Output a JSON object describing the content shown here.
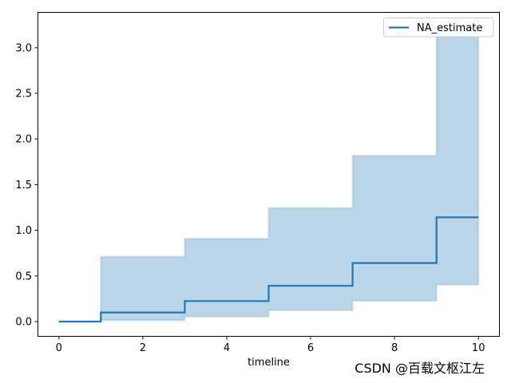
{
  "watermark": {
    "text": "CSDN @百载文枢江左",
    "color": "#b3b3b3"
  },
  "chart_data": {
    "type": "line",
    "subtype": "step-post",
    "title": "",
    "xlabel": "timeline",
    "ylabel": "",
    "grid": false,
    "background": "#ffffff",
    "axes_color": "#000000",
    "xlim": [
      -0.5,
      10.5
    ],
    "ylim": [
      -0.1613,
      3.3869
    ],
    "xticks": {
      "values": [
        0,
        2,
        4,
        6,
        8,
        10
      ],
      "labels": [
        "0",
        "2",
        "4",
        "6",
        "8",
        "10"
      ]
    },
    "yticks": {
      "values": [
        0,
        0.5,
        1.0,
        1.5,
        2.0,
        2.5,
        3.0
      ],
      "labels": [
        "0.0",
        "0.5",
        "1.0",
        "1.5",
        "2.0",
        "2.5",
        "3.0"
      ]
    },
    "legend": {
      "position": "upper right",
      "entries": [
        {
          "label": "NA_estimate",
          "color": "#1f77b4"
        }
      ]
    },
    "series": [
      {
        "name": "NA_estimate",
        "color": "#1f77b4",
        "x": [
          0,
          1,
          3,
          5,
          7,
          9,
          10
        ],
        "y": [
          0,
          0.1,
          0.225,
          0.3917,
          0.6417,
          1.1417,
          1.1417
        ]
      }
    ],
    "confidence_band": {
      "series": "NA_estimate",
      "color": "#1f77b4",
      "opacity": 0.3,
      "intervals": [
        {
          "x0": 1,
          "x1": 3,
          "lower": 0.0141,
          "upper": 0.7102
        },
        {
          "x0": 3,
          "x1": 5,
          "lower": 0.0558,
          "upper": 0.9073
        },
        {
          "x0": 5,
          "x1": 7,
          "lower": 0.1232,
          "upper": 1.2452
        },
        {
          "x0": 7,
          "x1": 9,
          "lower": 0.2268,
          "upper": 1.8158
        },
        {
          "x0": 9,
          "x1": 10,
          "lower": 0.4041,
          "upper": 3.2256
        }
      ]
    }
  }
}
